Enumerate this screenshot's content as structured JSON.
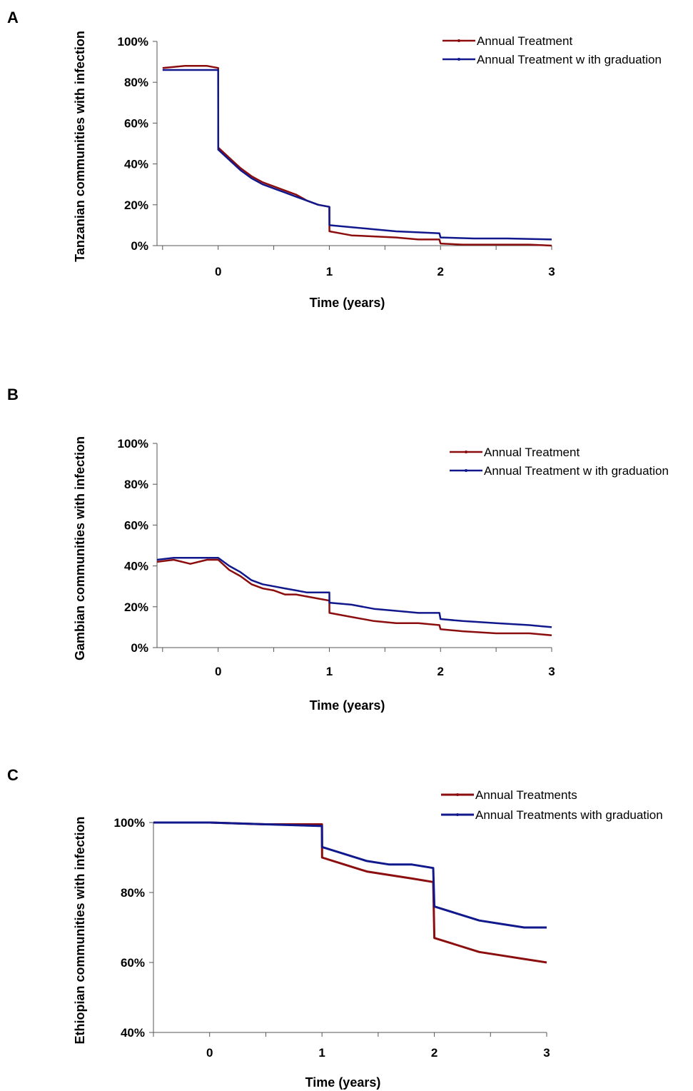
{
  "colors": {
    "annual": "#8b0d0d",
    "graduation": "#10188c"
  },
  "chart_data": [
    {
      "type": "line",
      "panel": "A",
      "xlabel": "Time (years)",
      "ylabel": "Tanzanian communities with infection",
      "xlim": [
        -0.55,
        3.0
      ],
      "ylim": [
        0,
        100
      ],
      "x_ticks": [
        0,
        1,
        2,
        3
      ],
      "y_ticks": [
        0,
        20,
        40,
        60,
        80,
        100
      ],
      "y_tick_labels": [
        "0%",
        "20%",
        "40%",
        "60%",
        "80%",
        "100%"
      ],
      "legend": "top-right",
      "series": [
        {
          "name": "Annual Treatment",
          "color_key": "annual",
          "points": [
            [
              -0.5,
              87
            ],
            [
              -0.3,
              88
            ],
            [
              -0.1,
              88
            ],
            [
              0,
              87
            ],
            [
              0.001,
              48
            ],
            [
              0.1,
              43
            ],
            [
              0.2,
              38
            ],
            [
              0.3,
              34
            ],
            [
              0.4,
              31
            ],
            [
              0.5,
              29
            ],
            [
              0.6,
              27
            ],
            [
              0.7,
              25
            ],
            [
              0.8,
              22
            ],
            [
              0.9,
              20
            ],
            [
              1.0,
              19
            ],
            [
              1.001,
              7
            ],
            [
              1.1,
              6
            ],
            [
              1.2,
              5
            ],
            [
              1.4,
              4.5
            ],
            [
              1.6,
              4
            ],
            [
              1.8,
              3
            ],
            [
              1.99,
              3
            ],
            [
              2.0,
              1
            ],
            [
              2.2,
              0.5
            ],
            [
              2.5,
              0.5
            ],
            [
              2.8,
              0.5
            ],
            [
              3.0,
              0
            ]
          ]
        },
        {
          "name": "Annual Treatment w ith graduation",
          "color_key": "graduation",
          "points": [
            [
              -0.5,
              86
            ],
            [
              -0.3,
              86
            ],
            [
              -0.1,
              86
            ],
            [
              0,
              86
            ],
            [
              0.001,
              47
            ],
            [
              0.1,
              42
            ],
            [
              0.2,
              37
            ],
            [
              0.3,
              33
            ],
            [
              0.4,
              30
            ],
            [
              0.5,
              28
            ],
            [
              0.6,
              26
            ],
            [
              0.7,
              24
            ],
            [
              0.8,
              22
            ],
            [
              0.9,
              20
            ],
            [
              1.0,
              19
            ],
            [
              1.001,
              10
            ],
            [
              1.2,
              9
            ],
            [
              1.4,
              8
            ],
            [
              1.6,
              7
            ],
            [
              1.8,
              6.5
            ],
            [
              1.99,
              6
            ],
            [
              2.0,
              4
            ],
            [
              2.3,
              3.5
            ],
            [
              2.6,
              3.5
            ],
            [
              3.0,
              3
            ]
          ]
        }
      ]
    },
    {
      "type": "line",
      "panel": "B",
      "xlabel": "Time (years)",
      "ylabel": "Gambian communities with infection",
      "xlim": [
        -0.55,
        3.0
      ],
      "ylim": [
        0,
        100
      ],
      "x_ticks": [
        0,
        1,
        2,
        3
      ],
      "y_ticks": [
        0,
        20,
        40,
        60,
        80,
        100
      ],
      "y_tick_labels": [
        "0%",
        "20%",
        "40%",
        "60%",
        "80%",
        "100%"
      ],
      "legend": "top-right",
      "series": [
        {
          "name": "Annual Treatment",
          "color_key": "annual",
          "points": [
            [
              -0.55,
              42
            ],
            [
              -0.4,
              43
            ],
            [
              -0.25,
              41
            ],
            [
              -0.1,
              43
            ],
            [
              0,
              43
            ],
            [
              0.1,
              38
            ],
            [
              0.2,
              35
            ],
            [
              0.3,
              31
            ],
            [
              0.4,
              29
            ],
            [
              0.5,
              28
            ],
            [
              0.6,
              26
            ],
            [
              0.7,
              26
            ],
            [
              0.8,
              25
            ],
            [
              0.9,
              24
            ],
            [
              1.0,
              23
            ],
            [
              1.001,
              17
            ],
            [
              1.2,
              15
            ],
            [
              1.4,
              13
            ],
            [
              1.6,
              12
            ],
            [
              1.8,
              12
            ],
            [
              1.99,
              11
            ],
            [
              2.0,
              9
            ],
            [
              2.2,
              8
            ],
            [
              2.5,
              7
            ],
            [
              2.8,
              7
            ],
            [
              3.0,
              6
            ]
          ]
        },
        {
          "name": "Annual Treatment w ith graduation",
          "color_key": "graduation",
          "points": [
            [
              -0.55,
              43
            ],
            [
              -0.4,
              44
            ],
            [
              -0.25,
              44
            ],
            [
              -0.1,
              44
            ],
            [
              0,
              44
            ],
            [
              0.1,
              40
            ],
            [
              0.2,
              37
            ],
            [
              0.3,
              33
            ],
            [
              0.4,
              31
            ],
            [
              0.5,
              30
            ],
            [
              0.6,
              29
            ],
            [
              0.7,
              28
            ],
            [
              0.8,
              27
            ],
            [
              0.9,
              27
            ],
            [
              1.0,
              27
            ],
            [
              1.001,
              22
            ],
            [
              1.2,
              21
            ],
            [
              1.4,
              19
            ],
            [
              1.6,
              18
            ],
            [
              1.8,
              17
            ],
            [
              1.99,
              17
            ],
            [
              2.0,
              14
            ],
            [
              2.2,
              13
            ],
            [
              2.5,
              12
            ],
            [
              2.8,
              11
            ],
            [
              3.0,
              10
            ]
          ]
        }
      ]
    },
    {
      "type": "line",
      "panel": "C",
      "xlabel": "Time (years)",
      "ylabel": "Ethiopian communities with infection",
      "xlim": [
        -0.5,
        3.0
      ],
      "ylim": [
        40,
        100
      ],
      "x_ticks": [
        0,
        1,
        2,
        3
      ],
      "y_ticks": [
        40,
        60,
        80,
        100
      ],
      "y_tick_labels": [
        "40%",
        "60%",
        "80%",
        "100%"
      ],
      "legend": "top-right",
      "series": [
        {
          "name": "Annual Treatments",
          "color_key": "annual",
          "points": [
            [
              -0.5,
              100
            ],
            [
              0,
              100
            ],
            [
              0.5,
              99.5
            ],
            [
              1.0,
              99.5
            ],
            [
              1.001,
              90
            ],
            [
              1.2,
              88
            ],
            [
              1.4,
              86
            ],
            [
              1.6,
              85
            ],
            [
              1.8,
              84
            ],
            [
              1.99,
              83
            ],
            [
              2.0,
              67
            ],
            [
              2.2,
              65
            ],
            [
              2.4,
              63
            ],
            [
              2.6,
              62
            ],
            [
              2.8,
              61
            ],
            [
              3.0,
              60
            ]
          ]
        },
        {
          "name": "Annual Treatments with graduation",
          "color_key": "graduation",
          "points": [
            [
              -0.5,
              100
            ],
            [
              0,
              100
            ],
            [
              0.5,
              99.5
            ],
            [
              1.0,
              99
            ],
            [
              1.001,
              93
            ],
            [
              1.2,
              91
            ],
            [
              1.4,
              89
            ],
            [
              1.6,
              88
            ],
            [
              1.8,
              88
            ],
            [
              1.99,
              87
            ],
            [
              2.0,
              76
            ],
            [
              2.2,
              74
            ],
            [
              2.4,
              72
            ],
            [
              2.6,
              71
            ],
            [
              2.8,
              70
            ],
            [
              3.0,
              70
            ]
          ]
        }
      ]
    }
  ]
}
